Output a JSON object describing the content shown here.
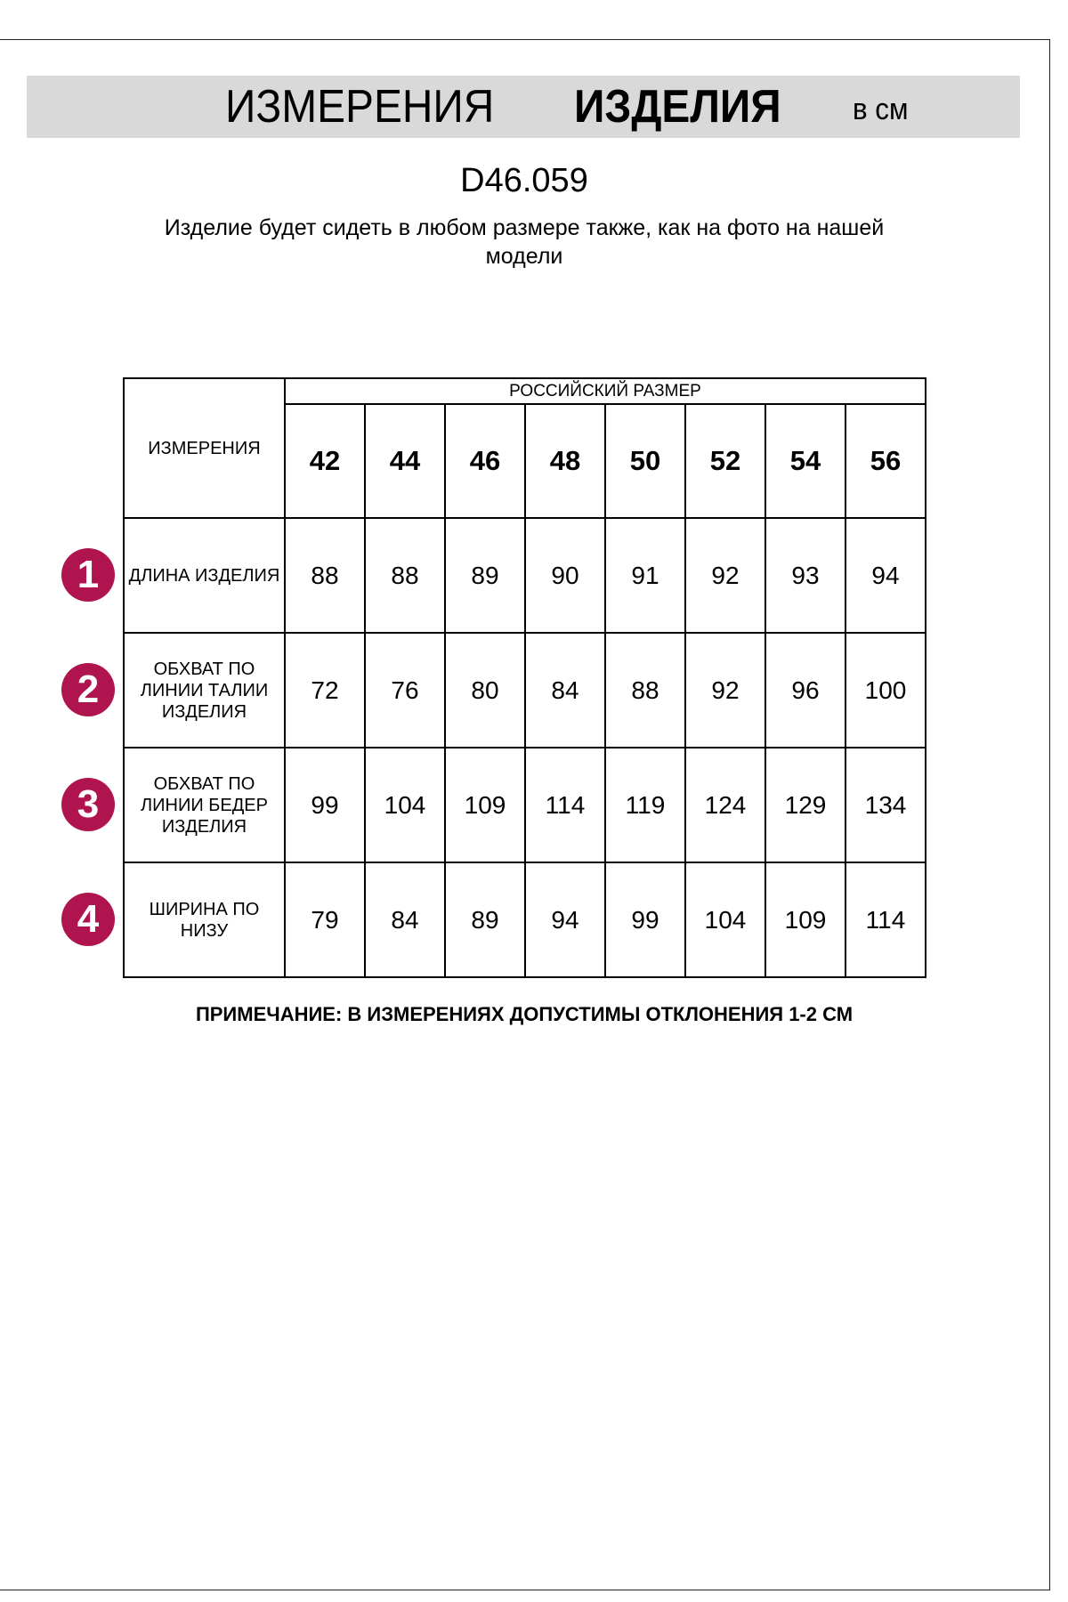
{
  "header": {
    "title_regular": "ИЗМЕРЕНИЯ",
    "title_bold": "ИЗДЕЛИЯ",
    "unit": "в см"
  },
  "product_code": "D46.059",
  "subtitle": "Изделие будет сидеть в любом размере также, как на фото на нашей модели",
  "table": {
    "corner_label": "ИЗМЕРЕНИЯ",
    "group_label": "РОССИЙСКИЙ РАЗМЕР",
    "sizes": [
      "42",
      "44",
      "46",
      "48",
      "50",
      "52",
      "54",
      "56"
    ],
    "rows": [
      {
        "number": "1",
        "label": "ДЛИНА ИЗДЕЛИЯ",
        "values": [
          "88",
          "88",
          "89",
          "90",
          "91",
          "92",
          "93",
          "94"
        ]
      },
      {
        "number": "2",
        "label": "ОБХВАТ ПО ЛИНИИ ТАЛИИ ИЗДЕЛИЯ",
        "values": [
          "72",
          "76",
          "80",
          "84",
          "88",
          "92",
          "96",
          "100"
        ]
      },
      {
        "number": "3",
        "label": "ОБХВАТ ПО ЛИНИИ БЕДЕР ИЗДЕЛИЯ",
        "values": [
          "99",
          "104",
          "109",
          "114",
          "119",
          "124",
          "129",
          "134"
        ]
      },
      {
        "number": "4",
        "label": "ШИРИНА ПО НИЗУ",
        "values": [
          "79",
          "84",
          "89",
          "94",
          "99",
          "104",
          "109",
          "114"
        ]
      }
    ]
  },
  "note": "ПРИМЕЧАНИЕ: В ИЗМЕРЕНИЯХ ДОПУСТИМЫ ОТКЛОНЕНИЯ 1-2 СМ",
  "colors": {
    "badge": "#b0144e",
    "banner": "#d9d9d9"
  }
}
